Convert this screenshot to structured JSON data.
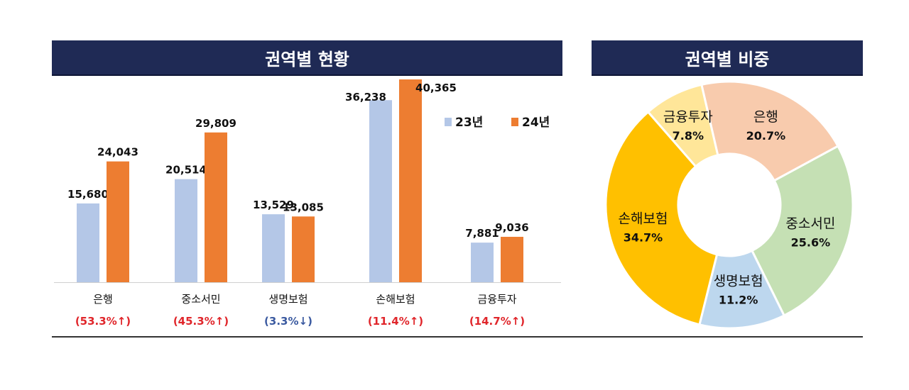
{
  "chart_data": [
    {
      "type": "bar",
      "title": "권역별 현황",
      "categories": [
        "은행",
        "중소서민",
        "생명보험",
        "손해보험",
        "금융투자"
      ],
      "change_labels": [
        "(53.3%↑)",
        "(45.3%↑)",
        "(3.3%↓)",
        "(11.4%↑)",
        "(14.7%↑)"
      ],
      "change_direction": [
        "up",
        "up",
        "down",
        "up",
        "up"
      ],
      "series": [
        {
          "name": "23년",
          "values": [
            15680,
            20514,
            13529,
            36238,
            7881
          ],
          "value_labels": [
            "15,680",
            "20,514",
            "13,529",
            "36,238",
            "7,881"
          ],
          "color": "#b4c7e7"
        },
        {
          "name": "24년",
          "values": [
            24043,
            29809,
            13085,
            40365,
            9036
          ],
          "value_labels": [
            "24,043",
            "29,809",
            "13,085",
            "40,365",
            "9,036"
          ],
          "color": "#ed7d31"
        }
      ],
      "ylim": [
        0,
        40365
      ],
      "grid": false,
      "legend_position": "top-right",
      "colors": {
        "up": "#e0262b",
        "down": "#3b5aa0"
      }
    },
    {
      "type": "pie",
      "title": "권역별 비중",
      "donut": true,
      "labels": [
        "은행",
        "중소서민",
        "생명보험",
        "손해보험",
        "금융투자"
      ],
      "values": [
        20.7,
        25.6,
        11.2,
        34.7,
        7.8
      ],
      "value_labels": [
        "20.7%",
        "25.6%",
        "11.2%",
        "34.7%",
        "7.8%"
      ],
      "colors": [
        "#f8cbad",
        "#c5e0b4",
        "#bdd7ee",
        "#ffc000",
        "#ffe699"
      ]
    }
  ]
}
